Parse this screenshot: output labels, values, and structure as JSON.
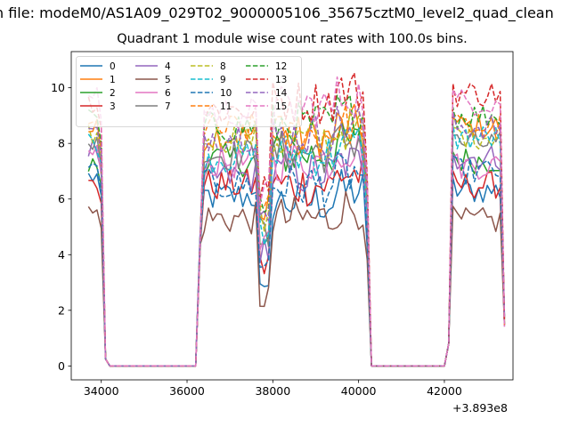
{
  "figure": {
    "suptitle": "n file: modeM0/AS1A09_029T02_9000005106_35675cztM0_level2_quad_clean",
    "title": "Quadrant 1 module wise count rates with 100.0s bins.",
    "x_offset_label": "+3.893e8"
  },
  "chart_data": {
    "type": "line",
    "title": "Quadrant 1 module wise count rates with 100.0s bins.",
    "xlabel": "",
    "ylabel": "",
    "x_offset": "+3.893e8",
    "xlim": [
      33300,
      43600
    ],
    "ylim": [
      -0.5,
      11.3
    ],
    "xticks": [
      34000,
      36000,
      38000,
      40000,
      42000
    ],
    "yticks": [
      0,
      2,
      4,
      6,
      8,
      10
    ],
    "grid": false,
    "legend": {
      "placement": "top-left",
      "columns": 4
    },
    "segments": [
      [
        33700,
        34000
      ],
      [
        36300,
        40200
      ],
      [
        42200,
        43400
      ]
    ],
    "gaps": [
      [
        34100,
        36100
      ],
      [
        40300,
        42000
      ]
    ],
    "series": [
      {
        "name": "0",
        "color": "#1f77b4",
        "dash": "solid",
        "levels": [
          6.8,
          6.1,
          5.9,
          6.3
        ]
      },
      {
        "name": "1",
        "color": "#ff7f0e",
        "dash": "solid",
        "levels": [
          8.5,
          8.3,
          8.2,
          8.6
        ]
      },
      {
        "name": "2",
        "color": "#2ca02c",
        "dash": "solid",
        "levels": [
          7.2,
          7.4,
          7.6,
          7.4
        ]
      },
      {
        "name": "3",
        "color": "#d62728",
        "dash": "solid",
        "levels": [
          6.5,
          6.5,
          6.5,
          6.5
        ]
      },
      {
        "name": "4",
        "color": "#9467bd",
        "dash": "solid",
        "levels": [
          7.8,
          6.8,
          6.9,
          7.5
        ]
      },
      {
        "name": "5",
        "color": "#8c564b",
        "dash": "solid",
        "levels": [
          5.5,
          5.3,
          5.3,
          5.2
        ]
      },
      {
        "name": "6",
        "color": "#e377c2",
        "dash": "solid",
        "levels": [
          7.6,
          7.3,
          7.4,
          7.2
        ]
      },
      {
        "name": "7",
        "color": "#7f7f7f",
        "dash": "solid",
        "levels": [
          8.0,
          7.6,
          7.7,
          8.0
        ]
      },
      {
        "name": "8",
        "color": "#bcbd22",
        "dash": "dashed",
        "levels": [
          8.3,
          8.2,
          8.1,
          8.3
        ]
      },
      {
        "name": "9",
        "color": "#17becf",
        "dash": "dashed",
        "levels": [
          8.1,
          7.5,
          7.6,
          8.2
        ]
      },
      {
        "name": "10",
        "color": "#1f77b4",
        "dash": "dashed",
        "levels": [
          7.0,
          6.5,
          6.5,
          7.0
        ]
      },
      {
        "name": "11",
        "color": "#ff7f0e",
        "dash": "dashed",
        "levels": [
          8.6,
          8.5,
          8.3,
          8.6
        ]
      },
      {
        "name": "12",
        "color": "#2ca02c",
        "dash": "dashed",
        "levels": [
          8.9,
          8.6,
          8.7,
          9.0
        ]
      },
      {
        "name": "13",
        "color": "#d62728",
        "dash": "dashed",
        "levels": [
          9.5,
          9.2,
          9.5,
          9.8
        ]
      },
      {
        "name": "14",
        "color": "#9467bd",
        "dash": "dashed",
        "levels": [
          8.4,
          8.3,
          8.3,
          8.6
        ]
      },
      {
        "name": "15",
        "color": "#e377c2",
        "dash": "dashed",
        "levels": [
          9.8,
          9.1,
          9.3,
          9.5
        ]
      }
    ],
    "level_note": "approximate mean count rate per series in: first segment, first half of middle segment, second half of middle segment, last segment"
  }
}
